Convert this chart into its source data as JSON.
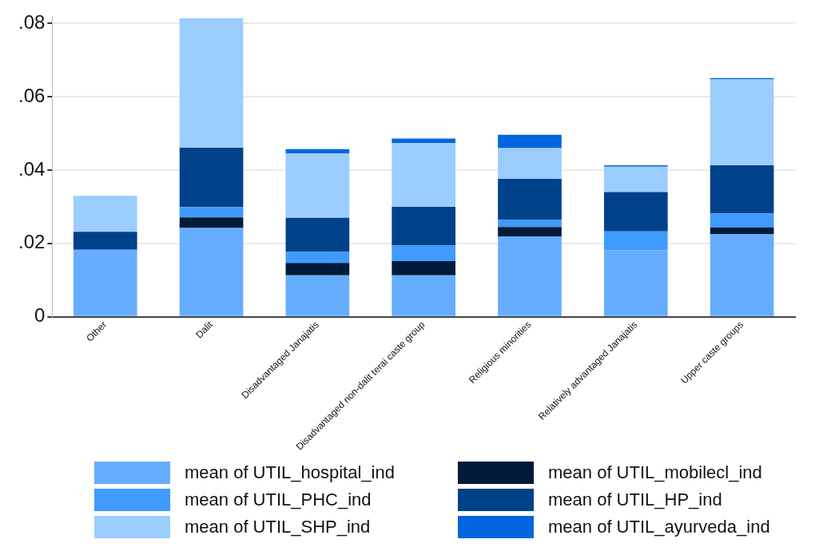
{
  "chart_data": {
    "type": "bar",
    "stacked": true,
    "categories": [
      "Other",
      "Dalit",
      "Disadvantaged Janajatis",
      "Disadvantaged non-dalit terai caste group",
      "Religious minorities",
      "Relatively advantaged Janajatis",
      "Upper caste groups"
    ],
    "series": [
      {
        "name": "mean of UTIL_hospital_ind",
        "color": "#66adff",
        "values": [
          0.0183,
          0.0242,
          0.0113,
          0.0113,
          0.0219,
          0.0181,
          0.0226
        ]
      },
      {
        "name": "mean of UTIL_mobilecl_ind",
        "color": "#001a3a",
        "values": [
          0,
          0.0029,
          0.0034,
          0.0039,
          0.0026,
          0,
          0.0018
        ]
      },
      {
        "name": "mean of UTIL_PHC_ind",
        "color": "#3f9bff",
        "values": [
          0,
          0.0028,
          0.003,
          0.0042,
          0.0019,
          0.0052,
          0.0038
        ]
      },
      {
        "name": "mean of UTIL_HP_ind",
        "color": "#004289",
        "values": [
          0.0049,
          0.0162,
          0.0093,
          0.0106,
          0.0112,
          0.0107,
          0.0131
        ]
      },
      {
        "name": "mean of UTIL_SHP_ind",
        "color": "#9ccdff",
        "values": [
          0.0098,
          0.0353,
          0.0175,
          0.0174,
          0.0084,
          0.0069,
          0.0234
        ]
      },
      {
        "name": "mean of UTIL_ayurveda_ind",
        "color": "#0066e0",
        "values": [
          0,
          0,
          0.0012,
          0.0012,
          0.0036,
          0.0004,
          0.0004
        ]
      }
    ],
    "ylim": [
      0,
      0.082
    ],
    "yticks": [
      0,
      {
        "value": 0.02,
        "label": ".02"
      },
      {
        "value": 0.04,
        "label": ".04"
      },
      {
        "value": 0.06,
        "label": ".06"
      },
      {
        "value": 0.08,
        "label": ".08"
      }
    ],
    "grid": "y",
    "legend": "bottom"
  }
}
